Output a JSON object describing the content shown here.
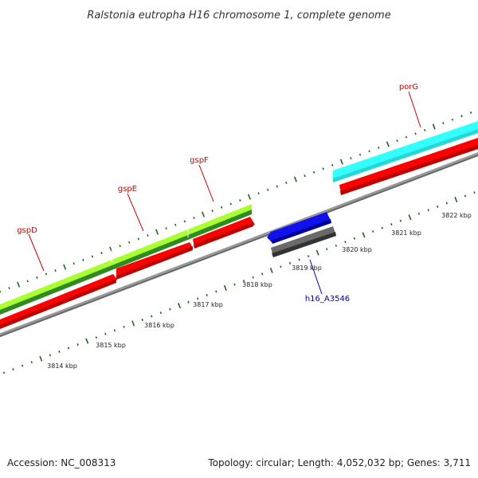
{
  "title": "Ralstonia eutropha H16 chromosome 1, complete genome",
  "footer": {
    "accession": "Accession: NC_008313",
    "summary": "Topology: circular; Length: 4,052,032 bp; Genes: 3,711"
  },
  "colors": {
    "backbone": "#999999",
    "cds": "#ff0000",
    "gene_light": "#aaff33",
    "gene_dark": "#338822",
    "porG": "#33ffff",
    "blue_feature": "#1111ee",
    "gray_feature": "#666666",
    "tick": "#226622",
    "label_red": "#cc0000",
    "label_blue": "#0000aa"
  },
  "gene_labels": [
    {
      "id": "gspD",
      "text": "gspD",
      "color": "label_red"
    },
    {
      "id": "gspE",
      "text": "gspE",
      "color": "label_red"
    },
    {
      "id": "gspF",
      "text": "gspF",
      "color": "label_red"
    },
    {
      "id": "porG",
      "text": "porG",
      "color": "label_red"
    },
    {
      "id": "h16_A3546",
      "text": "h16_A3546",
      "color": "label_blue"
    }
  ],
  "scale_labels": [
    "3814 kbp",
    "3815 kbp",
    "3816 kbp",
    "3817 kbp",
    "3818 kbp",
    "3819 kbp",
    "3820 kbp",
    "3821 kbp",
    "3822 kbp"
  ]
}
